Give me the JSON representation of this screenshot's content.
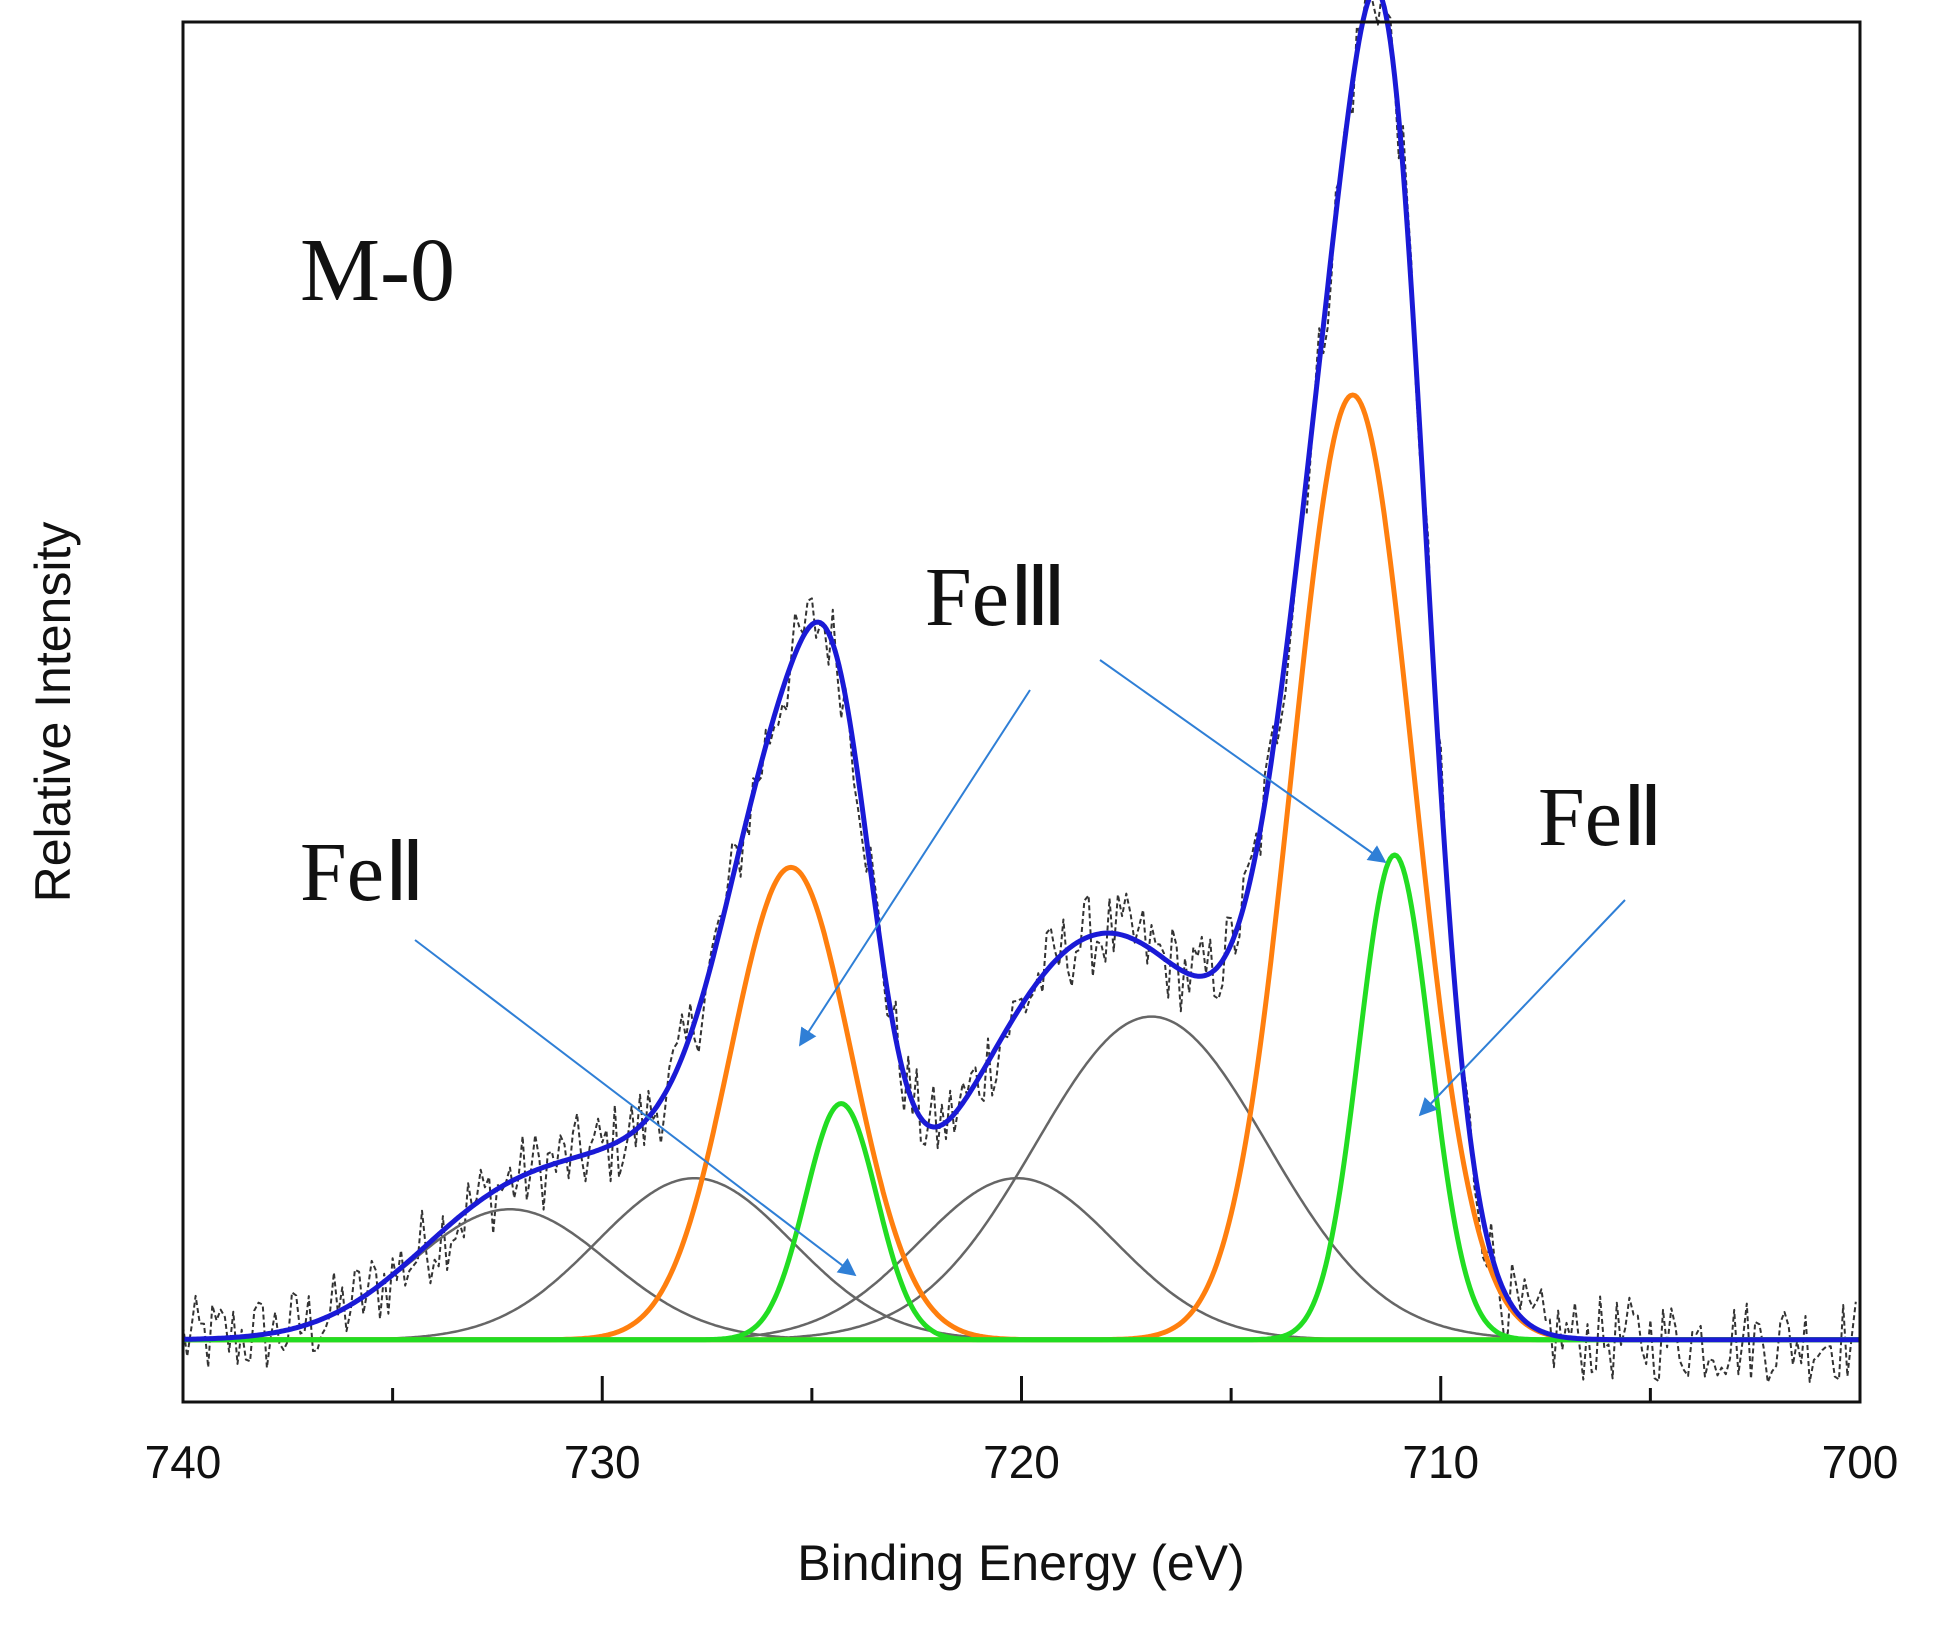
{
  "chart_data": {
    "type": "line",
    "title": "",
    "xlabel": "Binding Energy (eV)",
    "ylabel": "Relative Intensity",
    "xlim": [
      740,
      700
    ],
    "x_reversed": true,
    "ylim": [
      -0.05,
      1.06
    ],
    "y_ticks_shown": false,
    "x_ticks": [
      740,
      730,
      720,
      710,
      700
    ],
    "x_tick_labels": [
      "740",
      "730",
      "720",
      "710",
      "700"
    ],
    "sample_label": "M-0",
    "background": 0.0,
    "series": [
      {
        "role": "raw-data",
        "color": "#333333",
        "style": "dashed",
        "noise": 0.035
      },
      {
        "role": "envelope-fit",
        "color": "#1a1ad6"
      },
      {
        "role": "Fe-III-components",
        "color": "#ff7f0e",
        "peaks": [
          {
            "center": 725.5,
            "height": 0.38,
            "fwhm": 3.4
          },
          {
            "center": 712.1,
            "height": 0.76,
            "fwhm": 3.4
          }
        ]
      },
      {
        "role": "Fe-II-components",
        "color": "#22dd22",
        "peaks": [
          {
            "center": 724.3,
            "height": 0.19,
            "fwhm": 2.0
          },
          {
            "center": 711.1,
            "height": 0.39,
            "fwhm": 2.0
          }
        ]
      },
      {
        "role": "satellite-components",
        "color": "#666666",
        "peaks": [
          {
            "center": 732.2,
            "height": 0.105,
            "fwhm": 5.5
          },
          {
            "center": 727.8,
            "height": 0.13,
            "fwhm": 5.5
          },
          {
            "center": 720.1,
            "height": 0.13,
            "fwhm": 5.5
          },
          {
            "center": 716.9,
            "height": 0.26,
            "fwhm": 6.5
          }
        ]
      }
    ],
    "annotations": [
      {
        "text": "FeⅡ",
        "target_label": "FeⅡ (left)"
      },
      {
        "text": "FeⅢ",
        "target_label": "FeⅢ"
      },
      {
        "text": "FeⅡ",
        "target_label": "FeⅡ (right)"
      }
    ],
    "colors": {
      "arrow": "#2f7fd6",
      "axis": "#111111"
    }
  }
}
